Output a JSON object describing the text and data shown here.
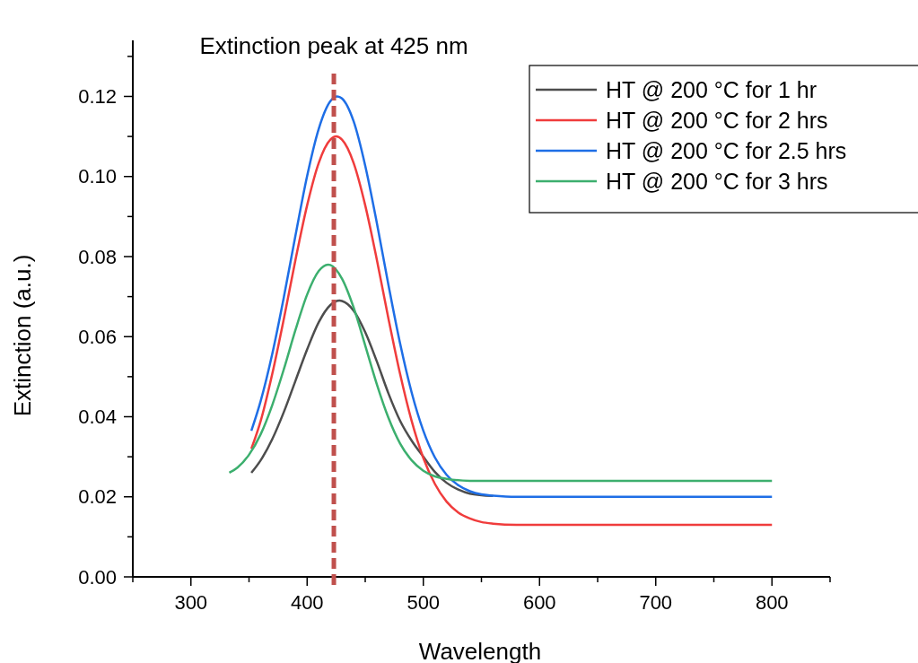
{
  "chart_data": {
    "type": "line",
    "xlabel": "Wavelength",
    "ylabel": "Extinction (a.u.)",
    "xlim": [
      250,
      850
    ],
    "ylim": [
      0,
      0.134
    ],
    "xticks": [
      {
        "value": 250,
        "label": null
      },
      300,
      {
        "value": 350,
        "label": null
      },
      400,
      {
        "value": 450,
        "label": null
      },
      500,
      {
        "value": 550,
        "label": null
      },
      600,
      {
        "value": 650,
        "label": null
      },
      700,
      {
        "value": 750,
        "label": null
      },
      800,
      {
        "value": 850,
        "label": null
      }
    ],
    "yticks": [
      {
        "value": 0,
        "label": "0.00"
      },
      {
        "value": 0.01,
        "label": null
      },
      {
        "value": 0.02,
        "label": "0.02"
      },
      {
        "value": 0.03,
        "label": null
      },
      {
        "value": 0.04,
        "label": "0.04"
      },
      {
        "value": 0.05,
        "label": null
      },
      {
        "value": 0.06,
        "label": "0.06"
      },
      {
        "value": 0.07,
        "label": null
      },
      {
        "value": 0.08,
        "label": "0.08"
      },
      {
        "value": 0.09,
        "label": null
      },
      {
        "value": 0.1,
        "label": "0.10"
      },
      {
        "value": 0.11,
        "label": null
      },
      {
        "value": 0.12,
        "label": "0.12"
      },
      {
        "value": 0.13,
        "label": null
      }
    ],
    "grid": false,
    "legend": "top right",
    "marker": "none",
    "line_style": "solid",
    "ref_lines": [
      {
        "axis": "x",
        "value": 423,
        "label": "Extinction peak at 425 nm",
        "color": "#c0504d",
        "line_style": "dashed"
      }
    ],
    "series": [
      {
        "name": "HT @ 200 °C for 1 hr",
        "color": "#4d4d4d",
        "x": [
          352,
          360,
          370,
          380,
          390,
          400,
          410,
          420,
          428,
          430,
          440,
          450,
          460,
          470,
          480,
          490,
          500,
          510,
          520,
          530,
          540,
          560
        ],
        "values": [
          0.026,
          0.0291,
          0.0344,
          0.0412,
          0.049,
          0.0568,
          0.0636,
          0.0679,
          0.069,
          0.0689,
          0.0665,
          0.0611,
          0.0538,
          0.0458,
          0.039,
          0.034,
          0.03,
          0.0262,
          0.0235,
          0.0218,
          0.0208,
          0.0202
        ]
      },
      {
        "name": "HT @ 200 °C for 2 hrs",
        "color": "#f03c3c",
        "x": [
          352,
          360,
          370,
          380,
          390,
          400,
          410,
          420,
          425,
          430,
          440,
          450,
          460,
          470,
          480,
          490,
          500,
          510,
          520,
          530,
          540,
          550,
          560,
          580,
          650,
          700,
          750,
          800
        ],
        "values": [
          0.032,
          0.0389,
          0.0507,
          0.0645,
          0.0792,
          0.0928,
          0.1034,
          0.1092,
          0.11,
          0.1092,
          0.1034,
          0.0928,
          0.0792,
          0.0645,
          0.0507,
          0.0389,
          0.0297,
          0.0232,
          0.0188,
          0.0161,
          0.0146,
          0.0137,
          0.0133,
          0.013,
          0.013,
          0.013,
          0.013,
          0.013
        ]
      },
      {
        "name": "HT @ 200 °C for 2.5 hrs",
        "color": "#1e6ee6",
        "x": [
          352,
          360,
          370,
          380,
          390,
          400,
          410,
          420,
          426,
          430,
          440,
          450,
          460,
          470,
          480,
          490,
          500,
          510,
          520,
          530,
          540,
          550,
          560,
          580,
          650,
          700,
          750,
          800
        ],
        "values": [
          0.0365,
          0.0439,
          0.0557,
          0.0699,
          0.0853,
          0.1001,
          0.1119,
          0.1188,
          0.12,
          0.1195,
          0.1138,
          0.1027,
          0.0884,
          0.0729,
          0.0583,
          0.046,
          0.0365,
          0.0298,
          0.0255,
          0.0229,
          0.0214,
          0.0206,
          0.0203,
          0.02,
          0.02,
          0.02,
          0.02,
          0.02
        ]
      },
      {
        "name": "HT @ 200 °C for 3 hrs",
        "color": "#3caf6e",
        "x": [
          333,
          340,
          350,
          360,
          370,
          380,
          390,
          400,
          410,
          418,
          420,
          430,
          440,
          450,
          460,
          470,
          480,
          490,
          500,
          510,
          520,
          540,
          600,
          700,
          800
        ],
        "values": [
          0.026,
          0.0273,
          0.0305,
          0.0356,
          0.0429,
          0.0519,
          0.0617,
          0.0705,
          0.0764,
          0.078,
          0.0779,
          0.0745,
          0.0673,
          0.0578,
          0.0481,
          0.0397,
          0.0333,
          0.0291,
          0.0265,
          0.0251,
          0.0245,
          0.024,
          0.024,
          0.024,
          0.024
        ]
      }
    ]
  }
}
